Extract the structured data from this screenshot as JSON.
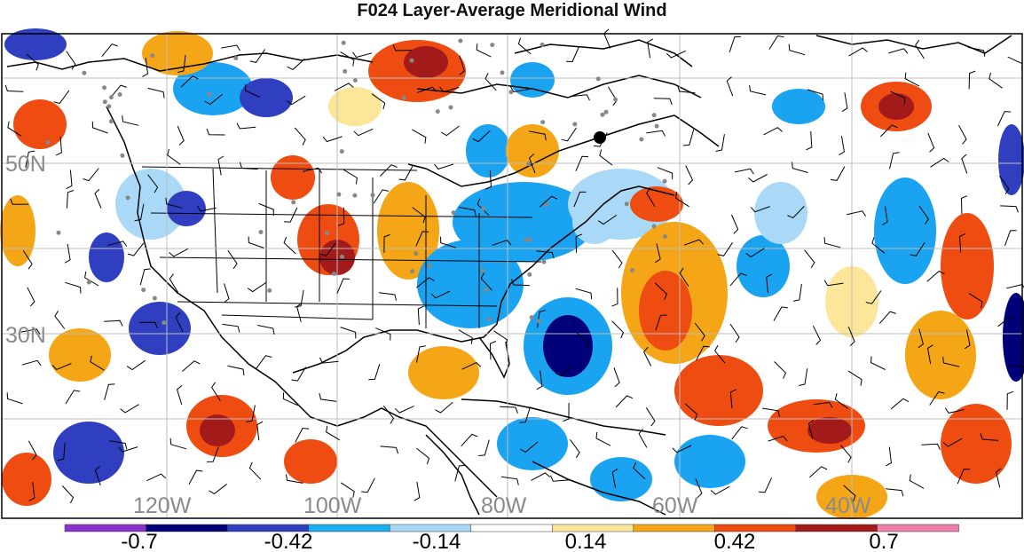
{
  "title": "F024 Layer-Average Meridional Wind",
  "map": {
    "lat_labels": [
      "50N",
      "30N"
    ],
    "lon_labels": [
      "120W",
      "100W",
      "80W",
      "60W",
      "40W"
    ],
    "palette": {
      "strong_neg": "#00007a",
      "neg2": "#2f3fbf",
      "neg1": "#1aa3f0",
      "neg0": "#a9d9f7",
      "pos0": "#fce69a",
      "pos1": "#f4a616",
      "pos2": "#ef4c12",
      "strong_pos": "#a31a1a"
    }
  },
  "colorbar": {
    "colors": [
      "#8a33cc",
      "#00007a",
      "#2f3fbf",
      "#18b0ef",
      "#a9d9f7",
      "#ffffff",
      "#fce69a",
      "#f4a616",
      "#ef4c12",
      "#a31a1a",
      "#f07fb0"
    ],
    "labels": [
      "-0.7",
      "-0.42",
      "-0.14",
      "0.14",
      "0.42",
      "0.7"
    ]
  }
}
